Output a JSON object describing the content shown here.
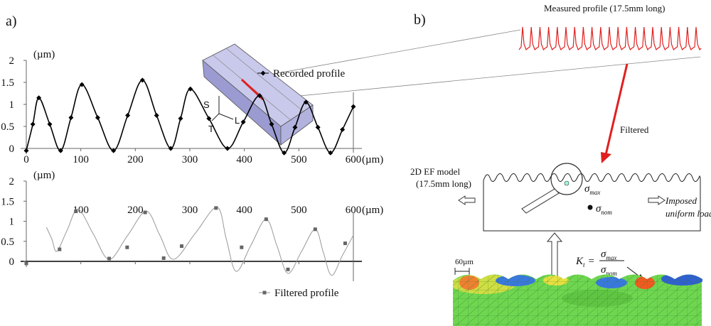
{
  "panel_labels": [
    "a)",
    "b)"
  ],
  "chart_data": [
    {
      "type": "line",
      "ylabel": "(µm)",
      "xlabel": "(µm)",
      "xlim": [
        0,
        600
      ],
      "ylim": [
        0,
        2
      ],
      "xticks": [
        0,
        100,
        200,
        300,
        400,
        500,
        600
      ],
      "yticks": [
        0,
        0.5,
        1,
        1.5,
        2
      ],
      "series": [
        {
          "name": "Recorded profile",
          "color": "#000000",
          "marker": "diamond",
          "x": [
            0,
            12,
            23,
            43,
            63,
            82,
            102,
            131,
            160,
            186,
            213,
            239,
            265,
            283,
            301,
            335,
            369,
            398,
            428,
            450,
            473,
            493,
            513,
            535,
            558,
            580,
            600
          ],
          "values": [
            -0.05,
            0.55,
            1.15,
            0.55,
            -0.05,
            0.7,
            1.45,
            0.7,
            -0.05,
            0.75,
            1.55,
            0.75,
            0,
            0.68,
            1.35,
            0.68,
            0,
            0.6,
            1.2,
            0.55,
            -0.1,
            0.48,
            1.05,
            0.48,
            -0.1,
            0.43,
            0.95
          ]
        }
      ]
    },
    {
      "type": "line",
      "ylabel": "(µm)",
      "xlabel": "(µm)",
      "xlim": [
        0,
        600
      ],
      "ylim": [
        0,
        2
      ],
      "xticks": [
        100,
        200,
        300,
        400,
        500,
        600
      ],
      "yticks": [
        0,
        0.5,
        1,
        1.5,
        2
      ],
      "series": [
        {
          "name": "Filtered profile",
          "color": "#999999",
          "marker": "square",
          "x": [
            37,
            47,
            56,
            75,
            95,
            123,
            152,
            186,
            220,
            245,
            270,
            310,
            350,
            367,
            385,
            412,
            440,
            460,
            480,
            505,
            530,
            545,
            560,
            580,
            600
          ],
          "values": [
            0.85,
            0.55,
            0.25,
            0.78,
            1.3,
            0.68,
            0.05,
            0.65,
            1.25,
            0.65,
            0.05,
            0.7,
            1.35,
            0.55,
            -0.25,
            0.4,
            1.05,
            0.38,
            -0.3,
            0.25,
            0.8,
            0.22,
            -0.35,
            0.15,
            0.65
          ],
          "marker_x": [
            0,
            61,
            91,
            152,
            185,
            218,
            252,
            285,
            348,
            395,
            440,
            480,
            530,
            585
          ],
          "marker_values": [
            -0.05,
            0.3,
            1.25,
            0.07,
            0.35,
            1.22,
            0.08,
            0.38,
            1.33,
            0.35,
            1.05,
            -0.2,
            0.8,
            0.45
          ]
        }
      ]
    }
  ],
  "diagram": {
    "measured_profile": "Measured profile (17.5mm long)",
    "axes": [
      "S",
      "L",
      "T"
    ],
    "filtered": "Filtered",
    "model_label": [
      "2D EF model",
      "(17.5mm long)"
    ],
    "load_label": [
      "Imposed",
      "uniform load"
    ],
    "sigma_max": [
      "σ",
      "max"
    ],
    "sigma_nom": [
      "σ",
      "nom"
    ],
    "scale": "60µm",
    "kt": {
      "lhs": [
        "K",
        "t",
        "="
      ],
      "num": [
        "σ",
        "max"
      ],
      "den": [
        "σ",
        "nom"
      ]
    }
  }
}
